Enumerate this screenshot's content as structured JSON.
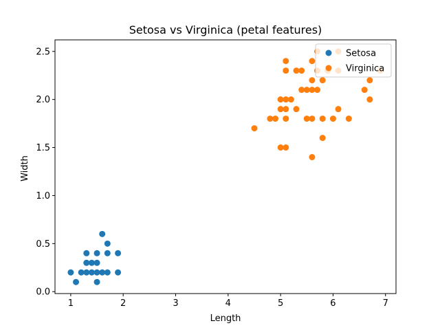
{
  "chart_data": {
    "type": "scatter",
    "title": "Setosa vs Virginica (petal features)",
    "xlabel": "Length",
    "ylabel": "Width",
    "xlim": [
      0.7,
      7.2
    ],
    "ylim": [
      -0.02,
      2.62
    ],
    "xticks": [
      1,
      2,
      3,
      4,
      5,
      6,
      7
    ],
    "xtick_labels": [
      "1",
      "2",
      "3",
      "4",
      "5",
      "6",
      "7"
    ],
    "yticks": [
      0.0,
      0.5,
      1.0,
      1.5,
      2.0,
      2.5
    ],
    "ytick_labels": [
      "0.0",
      "0.5",
      "1.0",
      "1.5",
      "2.0",
      "2.5"
    ],
    "grid": false,
    "legend_position": "top-right",
    "series": [
      {
        "name": "Setosa",
        "color": "#1f77b4",
        "points": [
          [
            1.0,
            0.2
          ],
          [
            1.1,
            0.1
          ],
          [
            1.2,
            0.2
          ],
          [
            1.3,
            0.2
          ],
          [
            1.3,
            0.3
          ],
          [
            1.3,
            0.4
          ],
          [
            1.4,
            0.2
          ],
          [
            1.4,
            0.3
          ],
          [
            1.5,
            0.1
          ],
          [
            1.5,
            0.2
          ],
          [
            1.5,
            0.3
          ],
          [
            1.5,
            0.4
          ],
          [
            1.6,
            0.2
          ],
          [
            1.6,
            0.6
          ],
          [
            1.7,
            0.2
          ],
          [
            1.7,
            0.4
          ],
          [
            1.7,
            0.5
          ],
          [
            1.9,
            0.2
          ],
          [
            1.9,
            0.4
          ]
        ]
      },
      {
        "name": "Virginica",
        "color": "#ff7f0e",
        "points": [
          [
            4.5,
            1.7
          ],
          [
            4.8,
            1.8
          ],
          [
            4.9,
            1.8
          ],
          [
            5.0,
            1.5
          ],
          [
            5.0,
            1.9
          ],
          [
            5.0,
            2.0
          ],
          [
            5.1,
            1.5
          ],
          [
            5.1,
            1.8
          ],
          [
            5.1,
            1.9
          ],
          [
            5.1,
            2.0
          ],
          [
            5.1,
            2.3
          ],
          [
            5.1,
            2.4
          ],
          [
            5.2,
            2.0
          ],
          [
            5.3,
            1.9
          ],
          [
            5.3,
            2.3
          ],
          [
            5.4,
            2.1
          ],
          [
            5.4,
            2.3
          ],
          [
            5.5,
            1.8
          ],
          [
            5.5,
            2.1
          ],
          [
            5.6,
            1.4
          ],
          [
            5.6,
            1.8
          ],
          [
            5.6,
            2.1
          ],
          [
            5.6,
            2.2
          ],
          [
            5.6,
            2.4
          ],
          [
            5.7,
            2.1
          ],
          [
            5.7,
            2.3
          ],
          [
            5.7,
            2.5
          ],
          [
            5.8,
            1.6
          ],
          [
            5.8,
            1.8
          ],
          [
            5.8,
            2.2
          ],
          [
            5.9,
            2.3
          ],
          [
            6.0,
            1.8
          ],
          [
            6.1,
            1.9
          ],
          [
            6.1,
            2.3
          ],
          [
            6.1,
            2.5
          ],
          [
            6.3,
            1.8
          ],
          [
            6.6,
            2.1
          ],
          [
            6.7,
            2.0
          ],
          [
            6.7,
            2.2
          ],
          [
            6.9,
            2.3
          ]
        ]
      }
    ]
  }
}
